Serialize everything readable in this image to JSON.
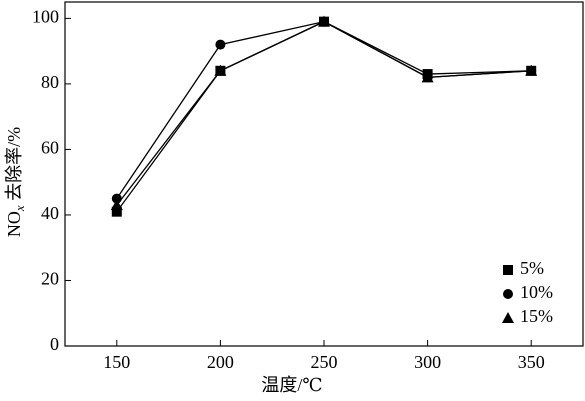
{
  "chart_data": {
    "type": "line",
    "x": [
      150,
      200,
      250,
      300,
      350
    ],
    "xlim": [
      125,
      375
    ],
    "xticks": [
      150,
      200,
      250,
      300,
      350
    ],
    "ylim": [
      0,
      105
    ],
    "yticks": [
      0,
      20,
      40,
      60,
      80,
      100
    ],
    "x_label": "温度/℃",
    "y_label_parts": [
      "NO",
      "x",
      " 去除率/%"
    ],
    "legend": "lower right",
    "series": [
      {
        "name": "5%",
        "color": "#000000",
        "marker": "square",
        "values": [
          41,
          84,
          99,
          83,
          84
        ]
      },
      {
        "name": "10%",
        "color": "#000000",
        "marker": "circle",
        "values": [
          45,
          92,
          99,
          82,
          84
        ]
      },
      {
        "name": "15%",
        "color": "#000000",
        "marker": "triangle",
        "values": [
          43,
          84,
          99,
          82,
          84
        ]
      }
    ]
  }
}
